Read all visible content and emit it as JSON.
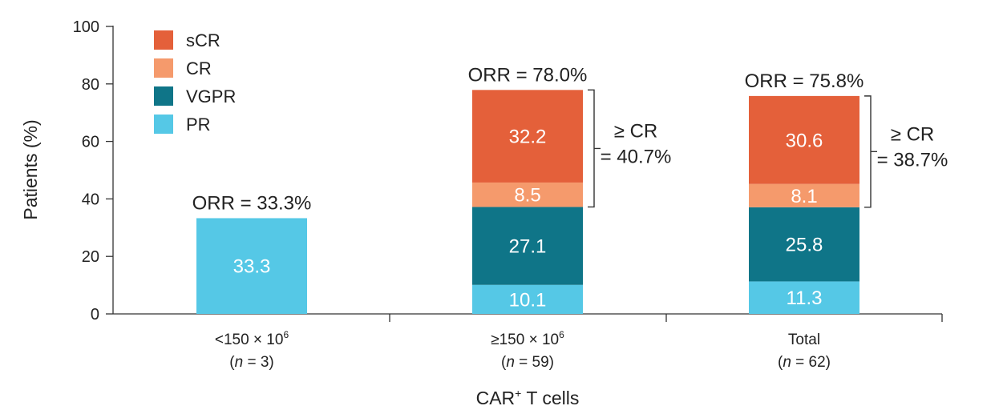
{
  "chart_data": {
    "type": "bar",
    "stacked": true,
    "ylabel": "Patients (%)",
    "xlabel": {
      "main": "CAR",
      "sup": "+",
      "rest": " T cells"
    },
    "ylim": [
      0,
      100
    ],
    "yticks": [
      0,
      20,
      40,
      60,
      80,
      100
    ],
    "grid": false,
    "legend_position": "top-left",
    "categories": [
      {
        "line1": "<150 × 10",
        "sup": "6",
        "line2_n": "n",
        "line2_rest": " = 3)",
        "line2_open": "("
      },
      {
        "line1": "≥150 × 10",
        "sup": "6",
        "line2_n": "n",
        "line2_rest": " = 59)",
        "line2_open": "("
      },
      {
        "line1": "Total",
        "sup": "",
        "line2_n": "n",
        "line2_rest": " = 62)",
        "line2_open": "("
      }
    ],
    "series": [
      {
        "name": "PR",
        "color": "#55c8e6",
        "values": [
          33.3,
          10.1,
          11.3
        ]
      },
      {
        "name": "VGPR",
        "color": "#0f7588",
        "values": [
          0,
          27.1,
          25.8
        ]
      },
      {
        "name": "CR",
        "color": "#f59a6c",
        "values": [
          0,
          8.5,
          8.1
        ]
      },
      {
        "name": "sCR",
        "color": "#e4603a",
        "values": [
          0,
          32.2,
          30.6
        ]
      }
    ],
    "data_labels": [
      [
        "33.3",
        "",
        "",
        ""
      ],
      [
        "10.1",
        "27.1",
        "8.5",
        "32.2"
      ],
      [
        "11.3",
        "25.8",
        "8.1",
        "30.6"
      ]
    ],
    "legend_order": [
      "sCR",
      "CR",
      "VGPR",
      "PR"
    ],
    "orr_labels": [
      "ORR = 33.3%",
      "ORR = 78.0%",
      "ORR = 75.8%"
    ],
    "bracket_annotations": [
      null,
      {
        "line1": "≥ CR",
        "line2": "= 40.7%"
      },
      {
        "line1": "≥ CR",
        "line2": "= 38.7%"
      }
    ]
  }
}
